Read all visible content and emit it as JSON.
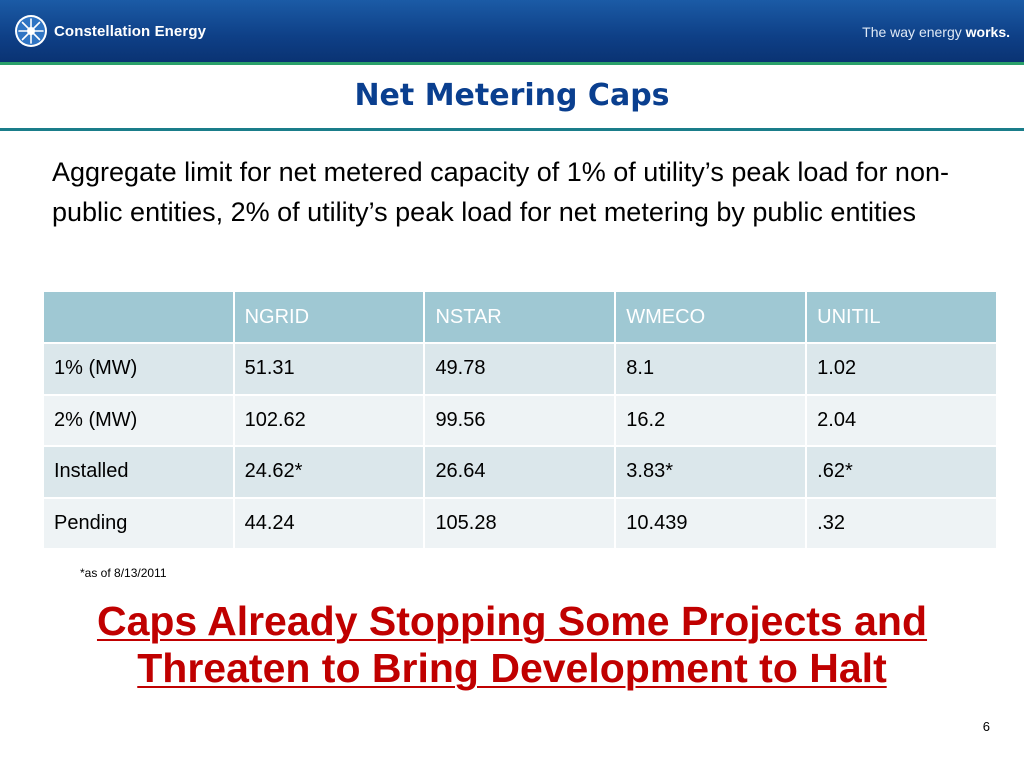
{
  "header": {
    "logo_text": "Constellation Energy",
    "tagline_prefix": "The way energy ",
    "tagline_bold": "works."
  },
  "slide": {
    "title": "Net Metering Caps",
    "body": "Aggregate limit for net metered capacity of 1% of utility’s peak load for non-public entities, 2% of utility’s peak load for net metering by public entities",
    "footnote": "*as of 8/13/2011",
    "callout_line1": "Caps Already Stopping Some Projects and",
    "callout_line2": "Threaten to Bring Development to Halt",
    "page_number": "6"
  },
  "table": {
    "columns": [
      "",
      "NGRID",
      "NSTAR",
      "WMECO",
      "UNITIL"
    ],
    "rows": [
      [
        "1% (MW)",
        "51.31",
        "49.78",
        "8.1",
        "1.02"
      ],
      [
        "2% (MW)",
        "102.62",
        "99.56",
        "16.2",
        "2.04"
      ],
      [
        "Installed",
        "24.62*",
        "26.64",
        "3.83*",
        ".62*"
      ],
      [
        "Pending",
        "44.24",
        "105.28",
        "10.439",
        ".32"
      ]
    ]
  },
  "colors": {
    "header_blue": "#0e3f86",
    "title_blue": "#0a3f8f",
    "accent_green": "#2aa06a",
    "table_header": "#9fc8d3",
    "callout_red": "#c00000"
  }
}
